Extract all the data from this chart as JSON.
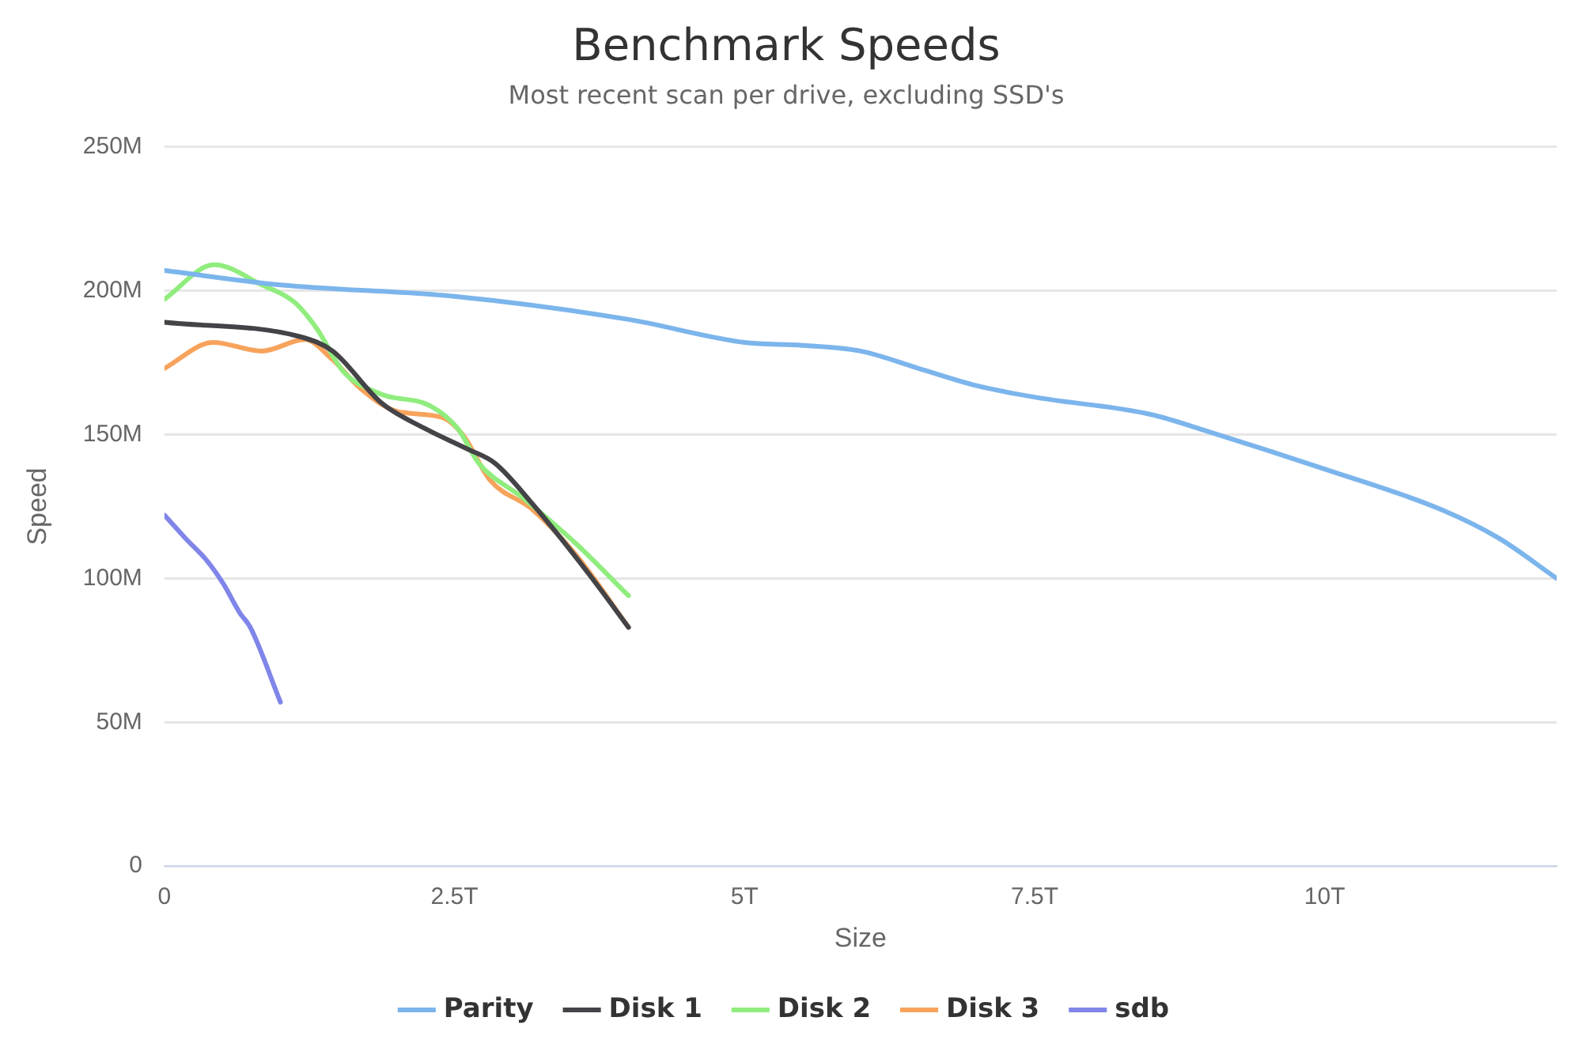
{
  "chart_data": {
    "type": "line",
    "title": "Benchmark Speeds",
    "subtitle": "Most recent scan per drive, excluding SSD's",
    "xlabel": "Size",
    "ylabel": "Speed",
    "xlim": [
      0,
      12
    ],
    "xticks": [
      0,
      {
        "value": 2.5,
        "label": "2.5T"
      },
      {
        "value": 5,
        "label": "5T"
      },
      {
        "value": 7.5,
        "label": "7.5T"
      },
      {
        "value": 10,
        "label": "10T"
      }
    ],
    "ylim": [
      0,
      250
    ],
    "yticks": [
      0,
      {
        "value": 50,
        "label": "50M"
      },
      {
        "value": 100,
        "label": "100M"
      },
      {
        "value": 150,
        "label": "150M"
      },
      {
        "value": 200,
        "label": "200M"
      },
      {
        "value": 250,
        "label": "250M"
      }
    ],
    "grid": "y",
    "legend": "bottom",
    "marker": "none",
    "line_style": "solid",
    "series": [
      {
        "name": "Parity",
        "color": "#7cb5ec",
        "x": [
          0,
          1,
          2.5,
          4,
          5,
          5.5,
          6,
          6.5,
          7,
          7.5,
          8.5,
          9,
          10,
          11,
          11.5,
          12
        ],
        "values": [
          207,
          202,
          198,
          190,
          182,
          181,
          179,
          173,
          167,
          163,
          157,
          151,
          138,
          124,
          114,
          100
        ]
      },
      {
        "name": "Disk 1",
        "color": "#434348",
        "x": [
          0,
          1.17,
          1.45,
          1.87,
          2.25,
          2.61,
          2.85,
          3.17,
          3.65,
          4
        ],
        "values": [
          189,
          184,
          179,
          161,
          152,
          145,
          140,
          126,
          102,
          83
        ]
      },
      {
        "name": "Disk 2",
        "color": "#90ed7d",
        "x": [
          0,
          0.43,
          0.84,
          1.12,
          1.31,
          1.54,
          1.87,
          2.29,
          2.53,
          2.71,
          3.09,
          3.55,
          4
        ],
        "values": [
          197,
          209,
          202,
          196,
          187,
          172,
          164,
          160,
          152,
          140,
          128,
          112,
          94
        ]
      },
      {
        "name": "Disk 3",
        "color": "#f7a35c",
        "x": [
          0,
          0.42,
          0.84,
          1.21,
          1.45,
          1.69,
          2.01,
          2.39,
          2.57,
          2.81,
          3.17,
          3.55,
          4
        ],
        "values": [
          173,
          182,
          179,
          183,
          176,
          166,
          158,
          156,
          150,
          134,
          124,
          108,
          83
        ]
      },
      {
        "name": "sdb",
        "color": "#8085e9",
        "x": [
          0,
          0.18,
          0.37,
          0.51,
          0.65,
          0.74,
          1
        ],
        "values": [
          122,
          114,
          106,
          98,
          88,
          83,
          57
        ]
      }
    ]
  }
}
